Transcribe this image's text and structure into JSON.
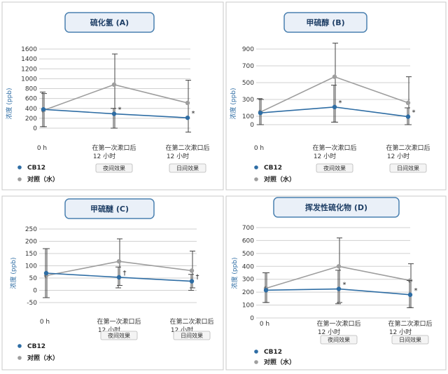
{
  "ylabel": "浓度 (ppb)",
  "legend": [
    {
      "name": "CB12",
      "color": "#2e6da4"
    },
    {
      "name": "对照（水）",
      "color": "#999999"
    }
  ],
  "colors": {
    "cb12": "#2e6da4",
    "control": "#9e9e9e",
    "grid": "#d0d0d0",
    "title_border": "#4a80b0",
    "title_fill": "#eaf0f8",
    "box_border": "#c8c8c8"
  },
  "chart_data": [
    {
      "type": "line",
      "title": "硫化氢 (A)",
      "ylabel": "浓度 (ppb)",
      "ylim": [
        0,
        1600
      ],
      "yticks": [
        0,
        200,
        400,
        600,
        800,
        1000,
        1200,
        1400,
        1600
      ],
      "categories": [
        "0 h",
        "在第一次漱口后 12 小时",
        "在第二次漱口后 12 小时"
      ],
      "category_tags": [
        "",
        "夜间效果",
        "日间效果"
      ],
      "series": [
        {
          "name": "CB12",
          "values": [
            380,
            290,
            210
          ],
          "err_low": [
            30,
            0,
            0
          ],
          "err_high": [
            730,
            400,
            0
          ],
          "marker": [
            "",
            "*",
            "*"
          ]
        },
        {
          "name": "对照（水）",
          "values": [
            360,
            880,
            510
          ],
          "err_low": [
            30,
            0,
            -80
          ],
          "err_high": [
            700,
            1500,
            970
          ],
          "marker": [
            "",
            "",
            ""
          ]
        }
      ]
    },
    {
      "type": "line",
      "title": "甲硫醇 (B)",
      "ylabel": "浓度 (ppb)",
      "ylim": [
        0,
        900
      ],
      "yticks": [
        0,
        100,
        300,
        500,
        700,
        900
      ],
      "categories": [
        "0 h",
        "在第一次漱口后 12 小时",
        "在第二次漱口后 12 小时"
      ],
      "category_tags": [
        "",
        "夜间效果",
        "日间效果"
      ],
      "series": [
        {
          "name": "CB12",
          "values": [
            140,
            210,
            95
          ],
          "err_low": [
            0,
            30,
            0
          ],
          "err_high": [
            310,
            470,
            200
          ],
          "marker": [
            "",
            "*",
            "*"
          ]
        },
        {
          "name": "对照（水）",
          "values": [
            150,
            570,
            260
          ],
          "err_low": [
            0,
            30,
            0
          ],
          "err_high": [
            300,
            970,
            570
          ],
          "marker": [
            "",
            "",
            ""
          ]
        }
      ]
    },
    {
      "type": "line",
      "title": "甲硫醚 (C)",
      "ylabel": "浓度 (ppb)",
      "ylim": [
        -50,
        250
      ],
      "yticks": [
        -50,
        0,
        50,
        100,
        150,
        200,
        250
      ],
      "categories": [
        "0 h",
        "在第一次漱口后 12 小时",
        "在第二次漱口后 12 小时"
      ],
      "category_tags": [
        "",
        "夜间效果",
        "日间效果"
      ],
      "series": [
        {
          "name": "CB12",
          "values": [
            70,
            53,
            37
          ],
          "err_low": [
            -30,
            10,
            0
          ],
          "err_high": [
            170,
            95,
            65
          ],
          "marker": [
            "",
            "†",
            "†"
          ]
        },
        {
          "name": "对照（水）",
          "values": [
            60,
            118,
            80
          ],
          "err_low": [
            -30,
            20,
            10
          ],
          "err_high": [
            170,
            210,
            160
          ],
          "marker": [
            "",
            "",
            ""
          ]
        }
      ]
    },
    {
      "type": "line",
      "title": "挥发性硫化物 (D)",
      "ylabel": "浓度 (ppb)",
      "ylim": [
        0,
        700
      ],
      "yticks": [
        0,
        100,
        200,
        300,
        400,
        500,
        600,
        700
      ],
      "categories": [
        "0 h",
        "在第一次漱口后 12 小时",
        "在第二次漱口后 12 小时"
      ],
      "category_tags": [
        "",
        "夜间效果",
        "日间效果"
      ],
      "series": [
        {
          "name": "CB12",
          "values": [
            215,
            225,
            180
          ],
          "err_low": [
            120,
            110,
            80
          ],
          "err_high": [
            350,
            370,
            290
          ],
          "marker": [
            "",
            "*",
            "*"
          ]
        },
        {
          "name": "对照（水）",
          "values": [
            230,
            400,
            290
          ],
          "err_low": [
            120,
            120,
            80
          ],
          "err_high": [
            350,
            620,
            420
          ],
          "marker": [
            "",
            "",
            ""
          ]
        }
      ]
    }
  ]
}
